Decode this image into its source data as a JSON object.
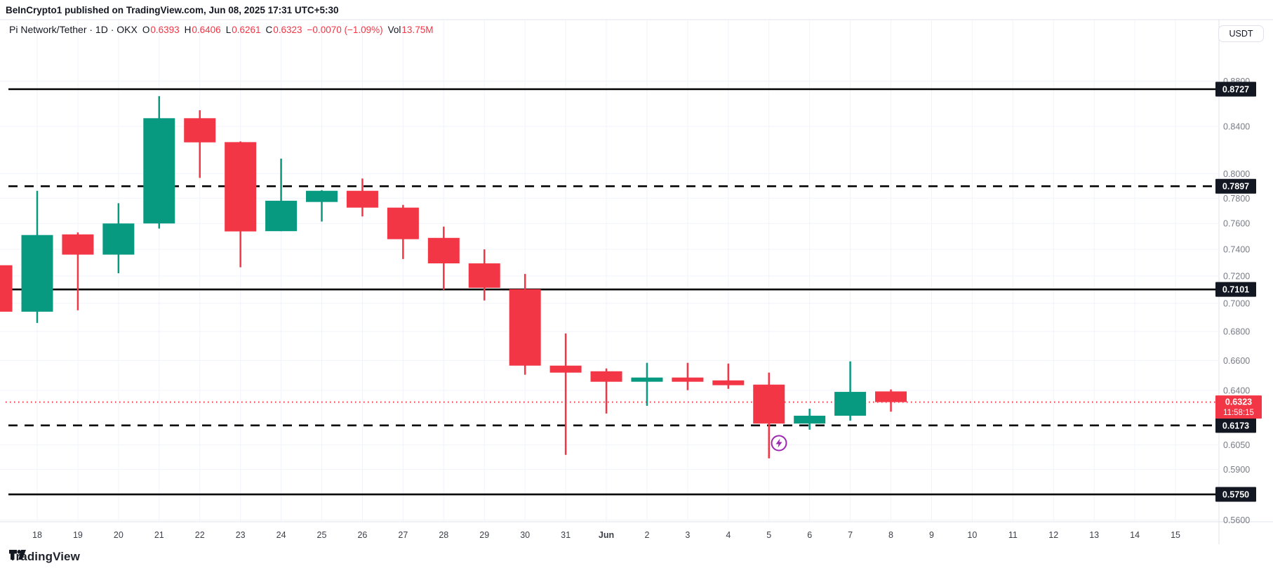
{
  "page_header": "BeInCrypto1 published on TradingView.com, Jun 08, 2025 17:31 UTC+5:30",
  "toolbar": {
    "symbol_title": "Pi Network/Tether · 1D · OKX",
    "ohlc": [
      {
        "k": "O",
        "v": "0.6393"
      },
      {
        "k": "H",
        "v": "0.6406"
      },
      {
        "k": "L",
        "v": "0.6261"
      },
      {
        "k": "C",
        "v": "0.6323"
      }
    ],
    "change": "−0.0070 (−1.09%)",
    "vol_label": "Vol",
    "vol_value": "13.75M",
    "currency_button": "USDT"
  },
  "footer": {
    "logo_text": "TradingView",
    "logo_icon": "tradingview-logo"
  },
  "chart_data": {
    "type": "candlestick",
    "title": "Pi Network/Tether, 1D, OKX",
    "scale": "logarithmic",
    "price_axis_ticks": [
      "0.8800",
      "0.8400",
      "0.8000",
      "0.7800",
      "0.7600",
      "0.7400",
      "0.7200",
      "0.7000",
      "0.6800",
      "0.6600",
      "0.6400",
      "0.6050",
      "0.5900",
      "0.5600"
    ],
    "time_axis_labels": [
      "18",
      "19",
      "20",
      "21",
      "22",
      "23",
      "24",
      "25",
      "26",
      "27",
      "28",
      "29",
      "30",
      "31",
      "Jun",
      "2",
      "3",
      "4",
      "5",
      "6",
      "7",
      "8",
      "9",
      "10",
      "11",
      "12",
      "13",
      "14",
      "15"
    ],
    "candles": [
      {
        "date": "May 17",
        "o": 0.728,
        "h": 0.728,
        "l": 0.694,
        "c": 0.694
      },
      {
        "date": "May 18",
        "o": 0.694,
        "h": 0.786,
        "l": 0.686,
        "c": 0.751
      },
      {
        "date": "May 19",
        "o": 0.7515,
        "h": 0.753,
        "l": 0.695,
        "c": 0.736
      },
      {
        "date": "May 20",
        "o": 0.736,
        "h": 0.776,
        "l": 0.722,
        "c": 0.76
      },
      {
        "date": "May 21",
        "o": 0.76,
        "h": 0.8665,
        "l": 0.756,
        "c": 0.847
      },
      {
        "date": "May 22",
        "o": 0.847,
        "h": 0.854,
        "l": 0.7965,
        "c": 0.8262
      },
      {
        "date": "May 23",
        "o": 0.8264,
        "h": 0.827,
        "l": 0.7265,
        "c": 0.7538
      },
      {
        "date": "May 24",
        "o": 0.754,
        "h": 0.8125,
        "l": 0.754,
        "c": 0.778
      },
      {
        "date": "May 25",
        "o": 0.777,
        "h": 0.7865,
        "l": 0.7615,
        "c": 0.786
      },
      {
        "date": "May 26",
        "o": 0.786,
        "h": 0.796,
        "l": 0.7655,
        "c": 0.7725
      },
      {
        "date": "May 27",
        "o": 0.7725,
        "h": 0.7747,
        "l": 0.7327,
        "c": 0.7478
      },
      {
        "date": "May 28",
        "o": 0.7488,
        "h": 0.7575,
        "l": 0.7098,
        "c": 0.7294
      },
      {
        "date": "May 29",
        "o": 0.7294,
        "h": 0.74,
        "l": 0.7021,
        "c": 0.7113
      },
      {
        "date": "May 30",
        "o": 0.7103,
        "h": 0.7215,
        "l": 0.6504,
        "c": 0.6565
      },
      {
        "date": "May 31",
        "o": 0.6565,
        "h": 0.6786,
        "l": 0.5989,
        "c": 0.6518
      },
      {
        "date": "Jun 1",
        "o": 0.6527,
        "h": 0.6546,
        "l": 0.6249,
        "c": 0.6457
      },
      {
        "date": "Jun 2",
        "o": 0.6457,
        "h": 0.6584,
        "l": 0.6299,
        "c": 0.6485
      },
      {
        "date": "Jun 3",
        "o": 0.6485,
        "h": 0.6584,
        "l": 0.6401,
        "c": 0.6457
      },
      {
        "date": "Jun 4",
        "o": 0.6466,
        "h": 0.6579,
        "l": 0.641,
        "c": 0.6434
      },
      {
        "date": "Jun 5",
        "o": 0.6438,
        "h": 0.6518,
        "l": 0.5967,
        "c": 0.6185
      },
      {
        "date": "Jun 6",
        "o": 0.6185,
        "h": 0.628,
        "l": 0.6146,
        "c": 0.6235
      },
      {
        "date": "Jun 7",
        "o": 0.6235,
        "h": 0.6594,
        "l": 0.6203,
        "c": 0.639
      },
      {
        "date": "Jun 8",
        "o": 0.6393,
        "h": 0.6406,
        "l": 0.6261,
        "c": 0.6323
      }
    ],
    "levels": [
      {
        "price": 0.8727,
        "label": "0.8727",
        "style": "solid"
      },
      {
        "price": 0.7897,
        "label": "0.7897",
        "style": "dashed"
      },
      {
        "price": 0.7101,
        "label": "0.7101",
        "style": "solid"
      },
      {
        "price": 0.6173,
        "label": "0.6173",
        "style": "dashed"
      },
      {
        "price": 0.575,
        "label": "0.5750",
        "style": "solid"
      }
    ],
    "current_price": {
      "price": 0.6323,
      "label": "0.6323",
      "countdown": "11:58:15"
    },
    "event_marker": {
      "date": "Jun 5",
      "icon": "lightning-circle-icon",
      "color": "#9c27b0"
    },
    "colors": {
      "up": "#089981",
      "down": "#f23645",
      "grid": "#f0f3fa",
      "border": "#e0e3eb",
      "price_tick_text": "#787b86",
      "time_tick_text": "#3c404b",
      "level_line": "#000000",
      "level_label_bg": "#131722",
      "current_price_color": "#f23645"
    }
  }
}
